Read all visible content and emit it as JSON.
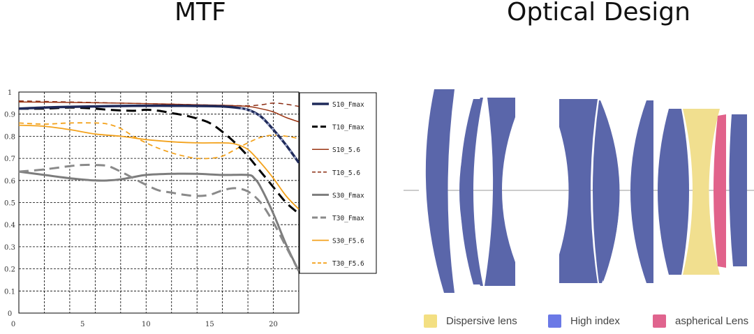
{
  "titles": {
    "left": "MTF",
    "right": "Optical Design"
  },
  "chart_data": {
    "type": "line",
    "xlim": [
      0,
      22
    ],
    "ylim": [
      0,
      1
    ],
    "grid": true,
    "x_ticks": [
      "0",
      "5",
      "10",
      "15",
      "20"
    ],
    "x_tick_values": [
      0,
      5,
      10,
      15,
      20
    ],
    "y_ticks": [
      "0",
      "0.1",
      "0.2",
      "0.3",
      "0.4",
      "0.5",
      "0.6",
      "0.7",
      "0.8",
      "0.9",
      "1"
    ],
    "y_tick_values": [
      0,
      0.1,
      0.2,
      0.3,
      0.4,
      0.5,
      0.6,
      0.7,
      0.8,
      0.9,
      1.0
    ],
    "legend_position": "right",
    "series": [
      {
        "name": "S10_Fmax",
        "color": "#1f2a5a",
        "dash": "solid",
        "width": 3.5,
        "marker": "dots",
        "x": [
          0,
          2,
          4,
          6,
          8,
          10,
          12,
          14,
          16,
          17,
          18,
          19,
          20,
          21,
          22
        ],
        "y": [
          0.925,
          0.93,
          0.933,
          0.935,
          0.937,
          0.938,
          0.938,
          0.937,
          0.935,
          0.93,
          0.92,
          0.89,
          0.83,
          0.76,
          0.68
        ]
      },
      {
        "name": "T10_Fmax",
        "color": "#000000",
        "dash": "dash",
        "width": 3,
        "x": [
          0,
          2,
          4,
          6,
          7,
          9,
          10,
          11,
          12,
          13,
          14,
          15,
          16,
          17,
          18,
          19,
          20,
          21,
          22
        ],
        "y": [
          0.925,
          0.925,
          0.93,
          0.925,
          0.92,
          0.915,
          0.92,
          0.915,
          0.905,
          0.895,
          0.88,
          0.86,
          0.82,
          0.77,
          0.71,
          0.64,
          0.57,
          0.5,
          0.45
        ]
      },
      {
        "name": "S10_5.6",
        "color": "#9a3412",
        "dash": "solid",
        "width": 1.5,
        "x": [
          0,
          4,
          8,
          12,
          16,
          18,
          19,
          20,
          21,
          22
        ],
        "y": [
          0.955,
          0.953,
          0.95,
          0.945,
          0.94,
          0.935,
          0.925,
          0.91,
          0.885,
          0.865
        ]
      },
      {
        "name": "T10_5.6",
        "color": "#8b2c12",
        "dash": "dash",
        "width": 1.5,
        "x": [
          0,
          4,
          8,
          12,
          16,
          18,
          19,
          20,
          21,
          22
        ],
        "y": [
          0.96,
          0.955,
          0.95,
          0.945,
          0.94,
          0.938,
          0.942,
          0.95,
          0.945,
          0.935
        ]
      },
      {
        "name": "S30_Fmax",
        "color": "#7d7d7d",
        "dash": "solid",
        "width": 3,
        "x": [
          0,
          2,
          4,
          6,
          7,
          8,
          9,
          10,
          12,
          14,
          16,
          18,
          18.5,
          19,
          20,
          21,
          22
        ],
        "y": [
          0.64,
          0.625,
          0.61,
          0.6,
          0.6,
          0.605,
          0.615,
          0.625,
          0.63,
          0.63,
          0.625,
          0.625,
          0.61,
          0.57,
          0.45,
          0.31,
          0.19
        ]
      },
      {
        "name": "T30_Fmax",
        "color": "#8a8a8a",
        "dash": "dash",
        "width": 3,
        "x": [
          0,
          2,
          4,
          5,
          6,
          7,
          8,
          9,
          10,
          11,
          12,
          13,
          14,
          15,
          16,
          17,
          18,
          19,
          20,
          21,
          22
        ],
        "y": [
          0.64,
          0.65,
          0.665,
          0.67,
          0.67,
          0.665,
          0.64,
          0.61,
          0.58,
          0.555,
          0.545,
          0.535,
          0.53,
          0.535,
          0.555,
          0.565,
          0.55,
          0.5,
          0.41,
          0.3,
          0.19
        ]
      },
      {
        "name": "S30_F5.6",
        "color": "#f3a21c",
        "dash": "solid",
        "width": 1.8,
        "x": [
          0,
          2,
          4,
          6,
          8,
          10,
          12,
          14,
          16,
          17,
          18,
          19,
          20,
          21,
          22
        ],
        "y": [
          0.85,
          0.845,
          0.83,
          0.81,
          0.8,
          0.785,
          0.775,
          0.77,
          0.77,
          0.765,
          0.74,
          0.68,
          0.61,
          0.53,
          0.47
        ]
      },
      {
        "name": "T30_F5.6",
        "color": "#f3a21c",
        "dash": "dash",
        "width": 1.8,
        "x": [
          0,
          2,
          4,
          6,
          7,
          8,
          9,
          10,
          11,
          12,
          13,
          14,
          15,
          16,
          17,
          18,
          19,
          20,
          21,
          22
        ],
        "y": [
          0.86,
          0.855,
          0.86,
          0.86,
          0.855,
          0.835,
          0.8,
          0.77,
          0.745,
          0.725,
          0.71,
          0.7,
          0.7,
          0.71,
          0.74,
          0.77,
          0.795,
          0.805,
          0.8,
          0.79
        ]
      }
    ]
  },
  "lens_legend": [
    {
      "label": "Dispersive lens",
      "color": "#f3df82"
    },
    {
      "label": "High index",
      "color": "#6b79e6"
    },
    {
      "label": "aspherical Lens",
      "color": "#e0648e"
    }
  ],
  "lens_colors": {
    "high_index": "#5a66aa",
    "dispersive": "#f1df8f",
    "aspherical": "#e1628b",
    "axis": "#999999"
  }
}
